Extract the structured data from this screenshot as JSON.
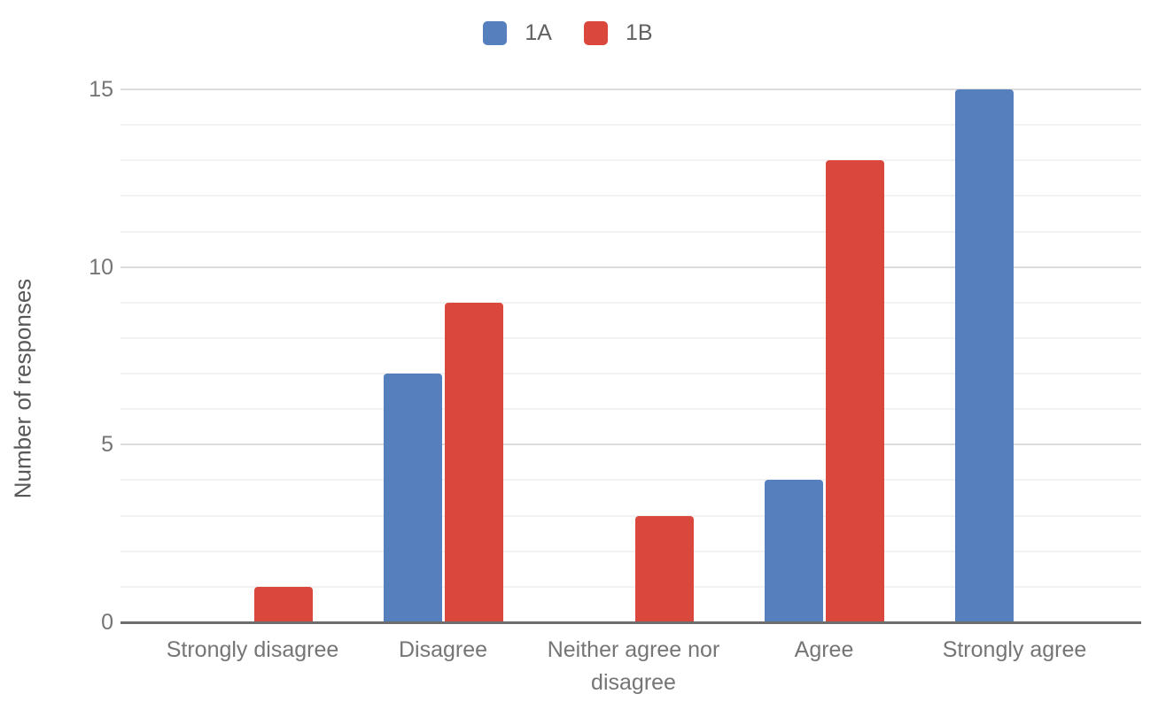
{
  "chart_data": {
    "type": "bar",
    "title": "",
    "categories": [
      "Strongly disagree",
      "Disagree",
      "Neither agree nor disagree",
      "Agree",
      "Strongly agree"
    ],
    "series": [
      {
        "name": "1A",
        "color": "#567fbd",
        "values": [
          0,
          7,
          0,
          4,
          15
        ]
      },
      {
        "name": "1B",
        "color": "#da473c",
        "values": [
          1,
          9,
          3,
          13,
          0
        ]
      }
    ],
    "xlabel": "",
    "ylabel": "Number of responses",
    "ylim": [
      0,
      15
    ],
    "yticks": [
      0,
      5,
      10,
      15
    ],
    "minor_grid_step": 1,
    "grid": true,
    "legend_position": "top"
  },
  "colors": {
    "background": "#ffffff",
    "axis_tick_text": "#757575",
    "category_text": "#757575",
    "legend_text": "#616161",
    "axis_title_text": "#585858",
    "baseline": "#6d6d6d",
    "major_gridline": "#dcdcdc",
    "minor_gridline": "#f2f2f2",
    "series_1A": "#567fbd",
    "series_1B": "#da473c"
  }
}
